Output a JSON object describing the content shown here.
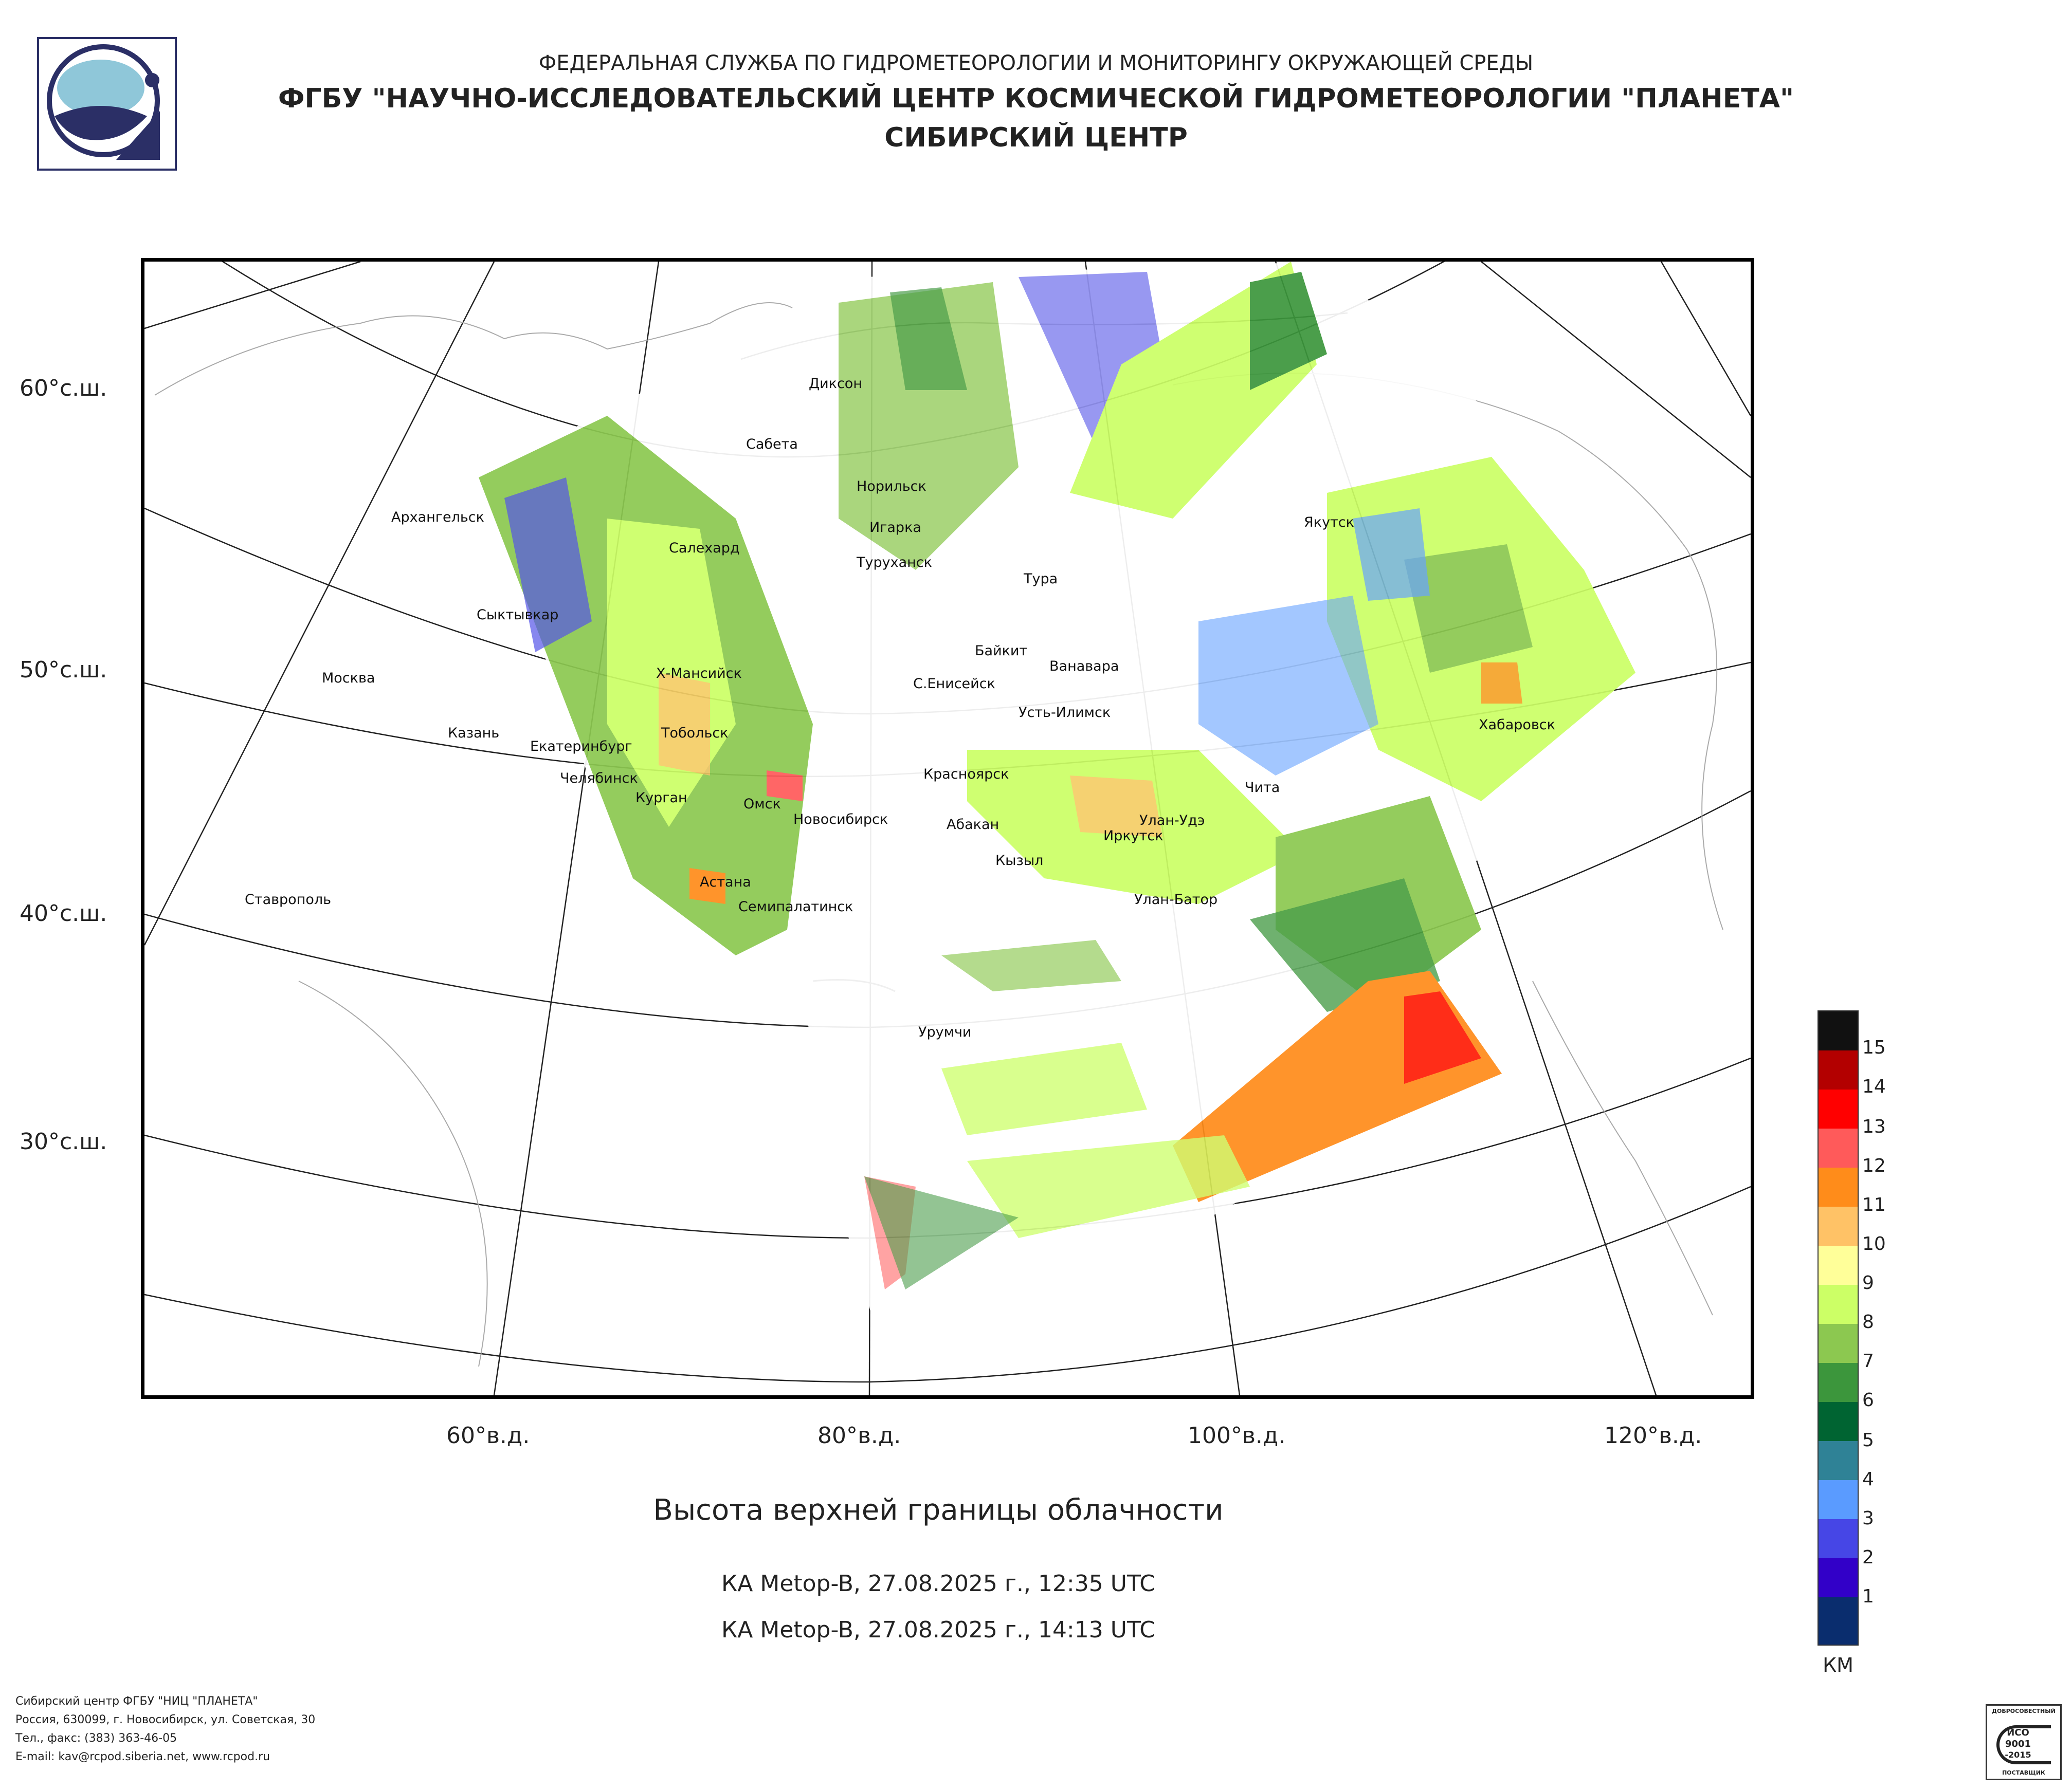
{
  "header": {
    "line1": "ФЕДЕРАЛЬНАЯ СЛУЖБА ПО ГИДРОМЕТЕОРОЛОГИИ И МОНИТОРИНГУ ОКРУЖАЮЩЕЙ СРЕДЫ",
    "line2": "ФГБУ \"НАУЧНО-ИССЛЕДОВАТЕЛЬСКИЙ ЦЕНТР КОСМИЧЕСКОЙ ГИДРОМЕТЕОРОЛОГИИ \"ПЛАНЕТА\"",
    "line3": "СИБИРСКИЙ ЦЕНТР",
    "logo_icon": "planeta-logo-icon"
  },
  "map": {
    "lat_labels": [
      "60°с.ш.",
      "50°с.ш.",
      "40°с.ш.",
      "30°с.ш."
    ],
    "lon_labels": [
      "60°в.д.",
      "80°в.д.",
      "100°в.д.",
      "120°в.д."
    ],
    "cities": [
      "Диксон",
      "Сабета",
      "Норильск",
      "Архангельск",
      "Игарка",
      "Салехард",
      "Туруханск",
      "Тура",
      "Якутск",
      "Сыктывкар",
      "Байкит",
      "Ванавара",
      "Москва",
      "Х-Мансийск",
      "С.Енисейск",
      "Усть-Илимск",
      "Хабаровск",
      "Казань",
      "Тобольск",
      "Екатеринбург",
      "Красноярск",
      "Челябинск",
      "Курган",
      "Чита",
      "Омск",
      "Новосибирск",
      "Абакан",
      "Улан-Удэ",
      "Иркутск",
      "Кызыл",
      "Астана",
      "Ставрополь",
      "Улан-Батор",
      "Семипалатинск",
      "Урумчи"
    ]
  },
  "legend": {
    "unit": "КМ",
    "labels": [
      "15",
      "14",
      "13",
      "12",
      "11",
      "10",
      "9",
      "8",
      "7",
      "6",
      "5",
      "4",
      "3",
      "2",
      "1"
    ],
    "colors": [
      "#111111",
      "#b30000",
      "#ff0000",
      "#ff5a5a",
      "#ff8c1a",
      "#ffc266",
      "#ffff99",
      "#ccff66",
      "#8cc850",
      "#3c963c",
      "#006432",
      "#2f8296",
      "#5a9bff",
      "#4646e6",
      "#3200c8",
      "#0a2d6e"
    ]
  },
  "title": "Высота верхней границы облачности",
  "subtitles": [
    "КА Metop-B, 27.08.2025 г., 12:35 UTC",
    "КА Metop-B, 27.08.2025 г., 14:13 UTC"
  ],
  "footer": [
    "Сибирский центр ФГБУ \"НИЦ \"ПЛАНЕТА\"",
    "Россия, 630099, г. Новосибирск, ул. Советская, 30",
    "Тел., факс: (383) 363-46-05",
    "E-mail: kav@rcpod.siberia.net, www.rcpod.ru"
  ],
  "certificate": {
    "top": "ДОБРОСОВЕСТНЫЙ",
    "line1": "ИСО",
    "line2": "9001",
    "line3": "-2015",
    "bottom": "ПОСТАВЩИК"
  }
}
